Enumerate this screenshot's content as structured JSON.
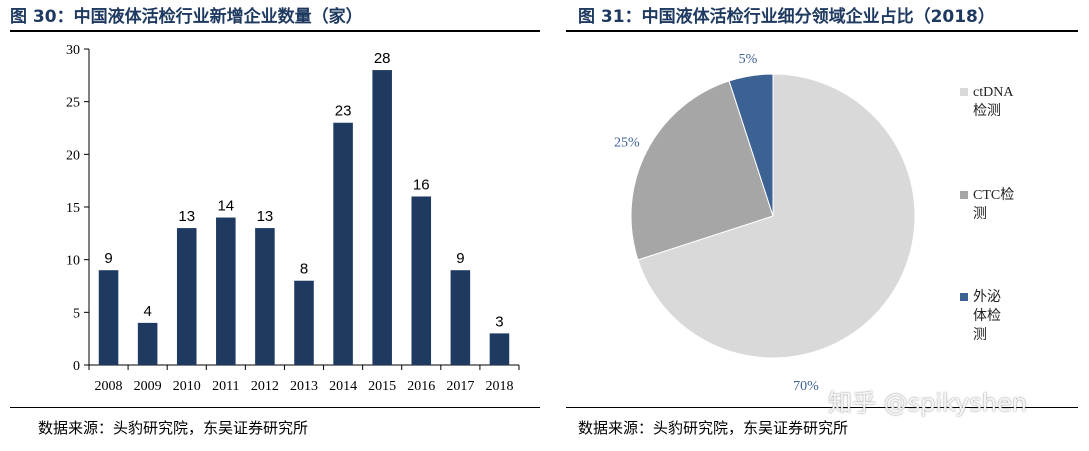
{
  "figure_left": {
    "title": "图 30：中国液体活检行业新增企业数量（家）",
    "source": "数据来源：头豹研究院，东吴证券研究所"
  },
  "figure_right": {
    "title": "图 31：中国液体活检行业细分领域企业占比（2018）",
    "source": "数据来源：头豹研究院，东吴证券研究所"
  },
  "watermark": "知乎 @spikyshen",
  "colors": {
    "bar": "#1f3a60",
    "title": "#1f3a60",
    "pie_ctdna": "#d9d9d9",
    "pie_ctc": "#a6a6a6",
    "pie_exosome": "#3c6193"
  },
  "chart_data": [
    {
      "type": "bar",
      "categories": [
        "2008",
        "2009",
        "2010",
        "2011",
        "2012",
        "2013",
        "2014",
        "2015",
        "2016",
        "2017",
        "2018"
      ],
      "values": [
        9,
        4,
        13,
        14,
        13,
        8,
        23,
        28,
        16,
        9,
        3
      ],
      "yticks": [
        "0",
        "5",
        "10",
        "15",
        "20",
        "25",
        "30"
      ],
      "ylim": [
        0,
        30
      ],
      "grid": false
    },
    {
      "type": "pie",
      "slices": [
        {
          "label": "ctDNA检测",
          "value": 70,
          "value_label": "70%"
        },
        {
          "label": "CTC检测",
          "value": 25,
          "value_label": "25%"
        },
        {
          "label": "外泌体检测",
          "value": 5,
          "value_label": "5%"
        }
      ],
      "legend_position": "right"
    }
  ]
}
